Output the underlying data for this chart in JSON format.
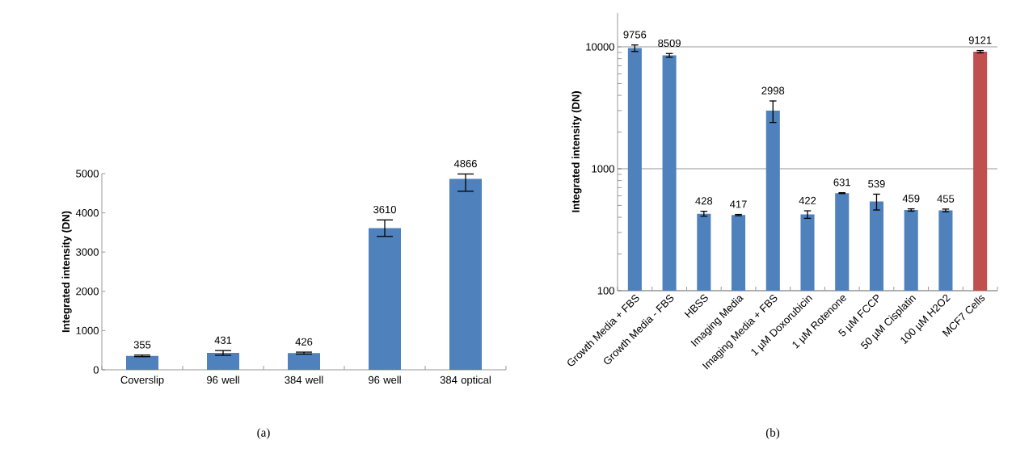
{
  "chart_data": [
    {
      "type": "bar",
      "categories": [
        "Coverslip",
        "96 well",
        "384 well",
        "96 well",
        "384 optical"
      ],
      "values": [
        355,
        431,
        426,
        3610,
        4866
      ],
      "color": "#4f81bd",
      "errors": [
        20,
        60,
        25,
        210,
        [
          4550,
          4990
        ]
      ],
      "ylabel": "Integrated intensity (DN)",
      "ylim": [
        0,
        5000
      ],
      "yticks": [
        0,
        1000,
        2000,
        3000,
        4000,
        5000
      ],
      "data_labels": true,
      "annotations": [
        "(a)"
      ]
    },
    {
      "type": "bar",
      "log": true,
      "categories": [
        "Growth Media + FBS",
        "Growth Media - FBS",
        "HBSS",
        "Imaging Media",
        "Imaging Media + FBS",
        "1 µM Doxorubicin",
        "1 µM Rotenone",
        "5 µM FCCP",
        "50 µM Cisplatin",
        "100 µM H2O2",
        "MCF7 Cells"
      ],
      "values": [
        9756,
        8509,
        428,
        417,
        2998,
        422,
        631,
        539,
        459,
        455,
        9121
      ],
      "colors": [
        "#4f81bd",
        "#4f81bd",
        "#4f81bd",
        "#4f81bd",
        "#4f81bd",
        "#4f81bd",
        "#4f81bd",
        "#4f81bd",
        "#4f81bd",
        "#4f81bd",
        "#c0504d"
      ],
      "errors": [
        600,
        300,
        20,
        5,
        600,
        30,
        5,
        80,
        10,
        12,
        200
      ],
      "ylabel": "Integrated intensity (DN)",
      "ylim": [
        100,
        19000
      ],
      "yticks": [
        100,
        1000,
        10000
      ],
      "grid": "y",
      "data_labels": true,
      "annotations": [
        "(b)"
      ]
    }
  ]
}
